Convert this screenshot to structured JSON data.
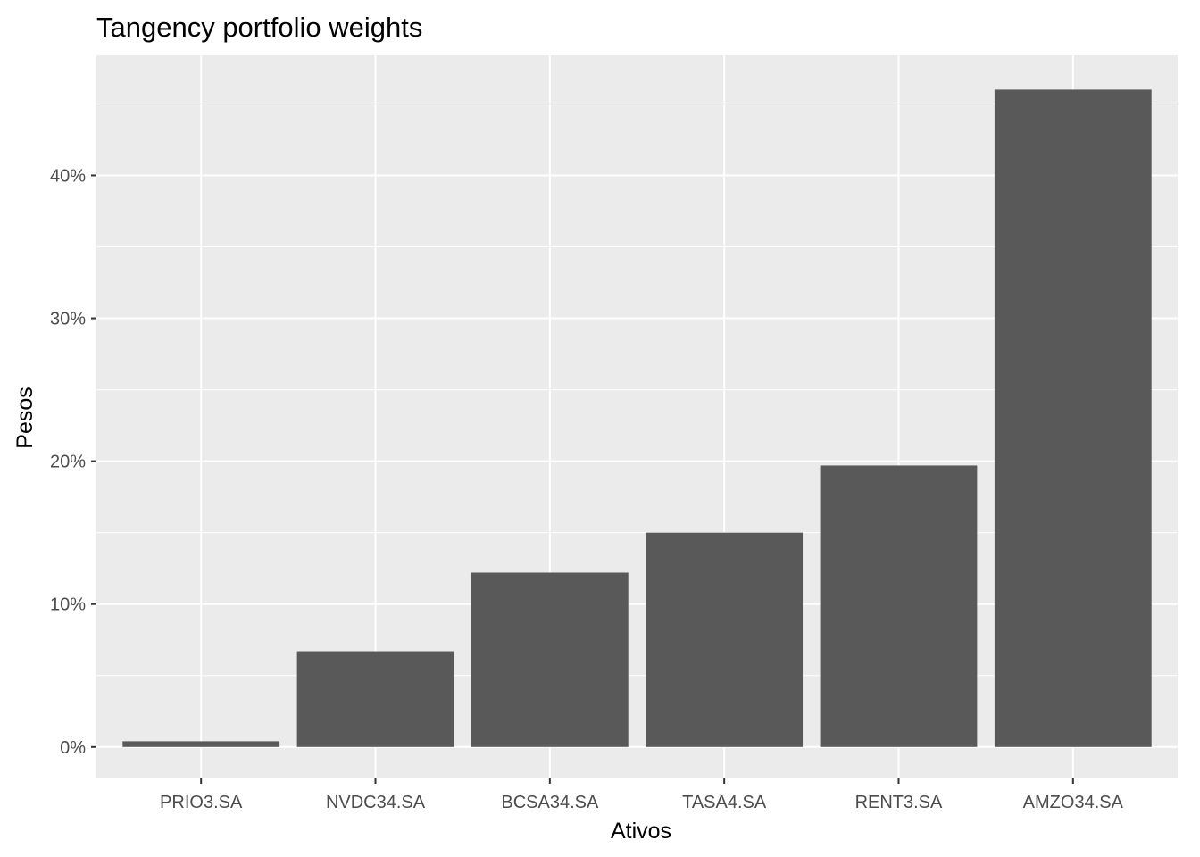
{
  "chart_data": {
    "type": "bar",
    "title": "Tangency portfolio weights",
    "xlabel": "Ativos",
    "ylabel": "Pesos",
    "categories": [
      "PRIO3.SA",
      "NVDC34.SA",
      "BCSA34.SA",
      "TASA4.SA",
      "RENT3.SA",
      "AMZO34.SA"
    ],
    "values": [
      0.004,
      0.067,
      0.122,
      0.15,
      0.197,
      0.46
    ],
    "ylim": [
      -0.022,
      0.484
    ],
    "yticks": [
      0,
      0.1,
      0.2,
      0.3,
      0.4
    ],
    "ytick_labels": [
      "0%",
      "10%",
      "20%",
      "30%",
      "40%"
    ],
    "grid": true,
    "bar_color": "#595959",
    "panel_color": "#ebebeb",
    "grid_color": "#ffffff"
  }
}
